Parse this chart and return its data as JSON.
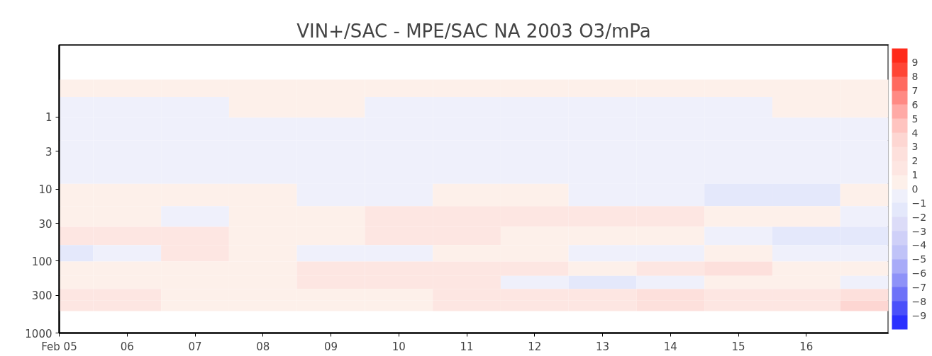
{
  "chart_data": {
    "type": "heatmap",
    "title": "VIN+/SAC - MPE/SAC NA 2003 O3/mPa",
    "x": [
      "2003-02-05",
      "2003-02-06",
      "2003-02-07",
      "2003-02-08",
      "2003-02-09",
      "2003-02-10",
      "2003-02-11",
      "2003-02-12",
      "2003-02-13",
      "2003-02-14",
      "2003-02-15",
      "2003-02-16",
      "2003-02-17"
    ],
    "y": [
      0.4,
      0.7,
      1.5,
      3,
      6,
      12,
      25,
      45,
      80,
      130,
      200,
      300,
      420
    ],
    "cells": [
      [
        0.5,
        0.5,
        0.5,
        0.5,
        0.5,
        0.5,
        0.5,
        0.5,
        0.5,
        0.5,
        0.5,
        0.5,
        0.5
      ],
      [
        -0.5,
        -0.5,
        -0.5,
        0.5,
        0.5,
        -0.5,
        -0.5,
        -0.5,
        -0.5,
        -0.5,
        -0.5,
        0.5,
        0.5
      ],
      [
        -0.5,
        -0.5,
        -0.5,
        -0.5,
        -0.5,
        -0.5,
        -0.5,
        -0.5,
        -0.5,
        -0.5,
        -0.5,
        -0.5,
        -0.5
      ],
      [
        -0.5,
        -0.5,
        -0.5,
        -0.5,
        -0.5,
        -0.5,
        -0.5,
        -0.5,
        -0.5,
        -0.5,
        -0.5,
        -0.5,
        -0.5
      ],
      [
        -0.5,
        -0.5,
        -0.5,
        -0.5,
        -0.5,
        -0.5,
        -0.5,
        -0.5,
        -0.5,
        -0.5,
        -0.5,
        -0.5,
        -0.5
      ],
      [
        0.5,
        0.5,
        0.5,
        0.5,
        -0.5,
        -0.5,
        0.5,
        0.5,
        -0.5,
        -0.5,
        -1.5,
        -1.5,
        0.5
      ],
      [
        0.5,
        0.5,
        -0.5,
        0.5,
        0.5,
        1.5,
        1.5,
        1.5,
        1.5,
        1.5,
        0.5,
        0.5,
        -0.5
      ],
      [
        1.5,
        1.5,
        1.5,
        0.5,
        0.5,
        1.5,
        1.5,
        0.5,
        0.5,
        0.5,
        -0.5,
        -1.5,
        -1.5
      ],
      [
        -1.5,
        -0.5,
        1.5,
        0.5,
        -0.5,
        -0.5,
        0.5,
        0.5,
        -0.5,
        -0.5,
        0.5,
        -0.5,
        -0.5
      ],
      [
        0.5,
        0.5,
        0.5,
        0.5,
        1.5,
        1.5,
        1.5,
        1.5,
        0.5,
        1.5,
        2.5,
        0.5,
        0.5
      ],
      [
        0.5,
        0.5,
        0.5,
        0.5,
        1.5,
        1.5,
        1.5,
        -0.5,
        -1.5,
        -0.5,
        0.5,
        0.5,
        -0.5
      ],
      [
        1.5,
        1.5,
        0.5,
        0.5,
        0.5,
        0.5,
        1.5,
        1.5,
        1.5,
        2.5,
        1.5,
        1.5,
        2.5
      ],
      [
        1.5,
        1.5,
        0.5,
        0.5,
        0.5,
        0.5,
        1.5,
        1.5,
        1.5,
        2.5,
        1.5,
        1.5,
        3.5
      ]
    ],
    "colors": [
      "#2a30ff",
      "#4a50fa",
      "#6e72f8",
      "#8e92f8",
      "#a8abf8",
      "#c0c3f8",
      "#cfd0f8",
      "#dcdcf8",
      "#e4e8fb",
      "#eff0fb",
      "#fdf0ea",
      "#fde6e2",
      "#fde0dc",
      "#fdd6d2",
      "#ffc4c0",
      "#ffaaa6",
      "#ff8a84",
      "#ff6a60",
      "#ff4535",
      "#ff2a1a"
    ],
    "clim": [
      -10,
      10
    ],
    "cticks": [
      -9,
      -8,
      -7,
      -6,
      -5,
      -4,
      -3,
      -2,
      -1,
      0,
      1,
      2,
      3,
      4,
      5,
      6,
      7,
      8,
      9
    ],
    "log": "y",
    "xlim": [
      "2003-02-05",
      "2003-02-17T05:00"
    ],
    "xticks": [
      {
        "value": "2003-02-05",
        "label": "Feb 05"
      },
      {
        "value": "2003-02-06",
        "label": "06"
      },
      {
        "value": "2003-02-07",
        "label": "07"
      },
      {
        "value": "2003-02-08",
        "label": "08"
      },
      {
        "value": "2003-02-09",
        "label": "09"
      },
      {
        "value": "2003-02-10",
        "label": "10"
      },
      {
        "value": "2003-02-11",
        "label": "11"
      },
      {
        "value": "2003-02-12",
        "label": "12"
      },
      {
        "value": "2003-02-13",
        "label": "13"
      },
      {
        "value": "2003-02-14",
        "label": "14"
      },
      {
        "value": "2003-02-15",
        "label": "15"
      },
      {
        "value": "2003-02-16",
        "label": "16"
      }
    ],
    "ylim": [
      1000,
      0.1
    ],
    "yticks": [
      1,
      3,
      10,
      30,
      100,
      300,
      1000
    ],
    "grid": false
  }
}
